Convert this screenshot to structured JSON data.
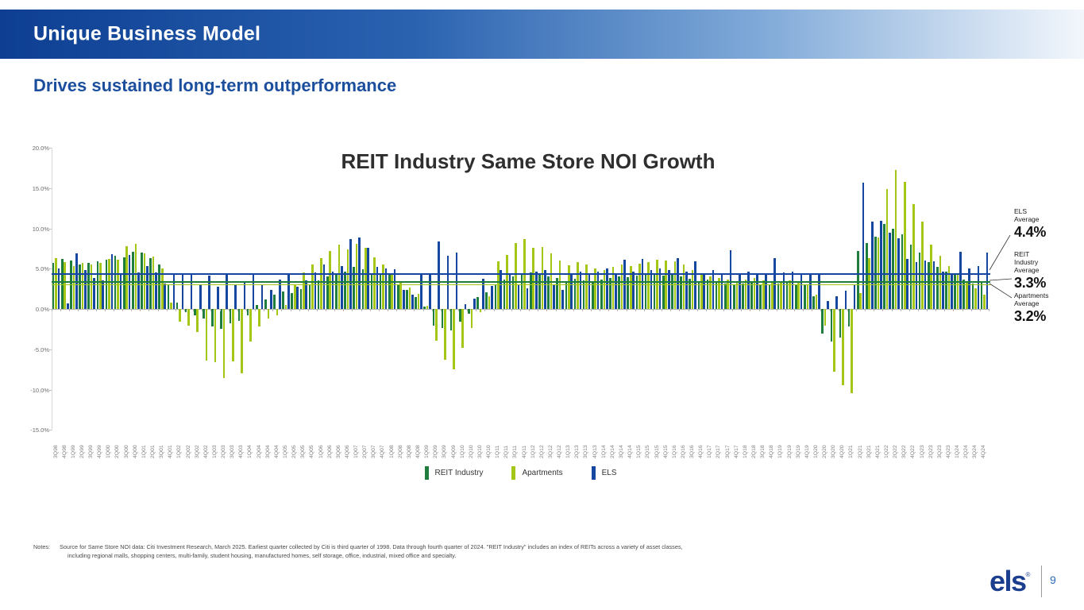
{
  "slide": {
    "header_title": "Unique Business Model",
    "subtitle": "Drives sustained long-term outperformance",
    "page_number": "9",
    "logo_text": "els",
    "logo_reg": "®"
  },
  "averages": {
    "els": {
      "l1": "ELS",
      "l2": "Average",
      "value": "4.4%"
    },
    "reit": {
      "l1": "REIT",
      "l2": "Industry",
      "l3": "Average",
      "value": "3.3%"
    },
    "apartments": {
      "l1": "Apartments",
      "l2": "Average",
      "value": "3.2%"
    }
  },
  "notes": {
    "label": "Notes:",
    "line1": "Source for Same Store NOI data: Citi Investment Research, March 2025. Earliest quarter collected by Citi is third quarter of 1998. Data through fourth quarter of 2024. \"REIT Industry\" includes an index of REITs across a variety of asset classes,",
    "line2": "including regional malls, shopping centers, multi-family, student housing, manufactured homes, self storage, office, industrial, mixed office and specialty."
  },
  "chart_data": {
    "type": "bar",
    "title": "REIT Industry Same Store NOI Growth",
    "ylim": [
      -15,
      20
    ],
    "grid": false,
    "legend_position": "bottom",
    "yticks": [
      [
        20,
        "20.0%"
      ],
      [
        15,
        "15.0%"
      ],
      [
        10,
        "10.0%"
      ],
      [
        5,
        "5.0%"
      ],
      [
        0,
        "0.0%"
      ],
      [
        -5,
        "-5.0%"
      ],
      [
        -10,
        "-10.0%"
      ],
      [
        -15,
        "-15.0%"
      ]
    ],
    "categories": [
      "3Q98",
      "4Q98",
      "1Q99",
      "2Q99",
      "3Q99",
      "4Q99",
      "1Q00",
      "2Q00",
      "3Q00",
      "4Q00",
      "1Q01",
      "2Q01",
      "3Q01",
      "4Q01",
      "1Q02",
      "2Q02",
      "3Q02",
      "4Q02",
      "1Q03",
      "2Q03",
      "3Q03",
      "4Q03",
      "1Q04",
      "2Q04",
      "3Q04",
      "4Q04",
      "1Q05",
      "2Q05",
      "3Q05",
      "4Q05",
      "1Q06",
      "2Q06",
      "3Q06",
      "4Q06",
      "1Q07",
      "2Q07",
      "3Q07",
      "4Q07",
      "1Q08",
      "2Q08",
      "3Q08",
      "4Q08",
      "1Q09",
      "2Q09",
      "3Q09",
      "4Q09",
      "1Q10",
      "2Q10",
      "3Q10",
      "4Q10",
      "1Q11",
      "2Q11",
      "3Q11",
      "4Q11",
      "1Q12",
      "2Q12",
      "3Q12",
      "4Q12",
      "1Q13",
      "2Q13",
      "3Q13",
      "4Q13",
      "1Q14",
      "2Q14",
      "3Q14",
      "4Q14",
      "1Q15",
      "2Q15",
      "3Q15",
      "4Q15",
      "1Q16",
      "2Q16",
      "3Q16",
      "4Q16",
      "1Q17",
      "2Q17",
      "3Q17",
      "4Q17",
      "1Q18",
      "2Q18",
      "3Q18",
      "4Q18",
      "1Q19",
      "2Q19",
      "3Q19",
      "4Q19",
      "1Q20",
      "2Q20",
      "3Q20",
      "4Q20",
      "1Q21",
      "2Q21",
      "3Q21",
      "4Q21",
      "1Q22",
      "2Q22",
      "3Q22",
      "4Q22",
      "1Q23",
      "2Q23",
      "3Q23",
      "4Q23",
      "1Q24",
      "2Q24",
      "3Q24",
      "4Q24"
    ],
    "series": [
      {
        "name": "REIT Industry",
        "color": "#1f7d3e",
        "average": 3.3,
        "values": [
          5.7,
          6.2,
          6.0,
          5.5,
          5.7,
          5.9,
          6.1,
          6.6,
          6.4,
          7.1,
          7.0,
          6.3,
          5.5,
          3.0,
          0.8,
          -0.4,
          -0.8,
          -1.2,
          -2.2,
          -2.5,
          -1.8,
          -1.5,
          -0.8,
          0.5,
          1.2,
          1.8,
          2.2,
          2.0,
          2.5,
          3.0,
          3.5,
          4.0,
          4.2,
          4.6,
          5.2,
          4.9,
          4.4,
          4.4,
          4.2,
          3.1,
          2.4,
          1.5,
          0.3,
          -2.1,
          -2.4,
          -2.7,
          -1.6,
          -0.6,
          1.5,
          2.1,
          3.0,
          3.6,
          4.0,
          4.2,
          4.5,
          4.3,
          4.0,
          3.8,
          3.4,
          3.7,
          3.5,
          3.3,
          3.6,
          3.8,
          4.0,
          3.9,
          4.1,
          4.2,
          4.3,
          4.1,
          4.3,
          4.0,
          3.7,
          3.4,
          3.6,
          3.3,
          3.2,
          3.0,
          3.2,
          3.3,
          3.1,
          3.0,
          3.2,
          3.3,
          3.1,
          3.0,
          1.6,
          -3.1,
          -4.0,
          -3.5,
          -2.2,
          7.2,
          8.2,
          9.0,
          10.5,
          10.0,
          9.3,
          8.0,
          7.0,
          5.8,
          5.2,
          4.6,
          4.2,
          3.6,
          3.2,
          3.4
        ]
      },
      {
        "name": "Apartments",
        "color": "#a4c717",
        "average": 3.2,
        "values": [
          6.3,
          5.8,
          5.3,
          5.7,
          5.5,
          5.7,
          6.2,
          6.1,
          7.8,
          8.1,
          6.9,
          6.5,
          5.0,
          0.8,
          -1.6,
          -2.1,
          -2.9,
          -6.4,
          -6.6,
          -8.6,
          -6.5,
          -8.0,
          -4.0,
          -2.2,
          -1.2,
          -0.8,
          0.5,
          3.0,
          4.5,
          5.5,
          6.3,
          7.2,
          8.0,
          7.4,
          8.1,
          7.6,
          6.4,
          5.5,
          4.4,
          3.4,
          2.7,
          1.9,
          0.4,
          -3.9,
          -6.3,
          -7.5,
          -4.8,
          -2.4,
          -0.4,
          1.6,
          5.9,
          6.7,
          8.2,
          8.7,
          7.6,
          7.7,
          6.9,
          6.0,
          5.4,
          5.8,
          5.5,
          5.0,
          4.8,
          5.2,
          5.5,
          5.3,
          5.6,
          5.8,
          6.1,
          6.0,
          5.9,
          5.5,
          4.8,
          4.2,
          4.0,
          3.8,
          3.6,
          3.4,
          3.6,
          3.8,
          3.5,
          3.3,
          3.4,
          3.5,
          3.3,
          3.1,
          1.8,
          -2.1,
          -7.8,
          -9.5,
          -10.4,
          2.0,
          6.3,
          8.9,
          14.9,
          17.2,
          15.8,
          13.0,
          10.8,
          8.0,
          6.6,
          5.3,
          4.4,
          3.3,
          2.6,
          1.8
        ]
      },
      {
        "name": "ELS",
        "color": "#1547a0",
        "average": 4.4,
        "values": [
          5.0,
          0.7,
          6.9,
          4.8,
          3.8,
          3.5,
          6.8,
          4.2,
          6.7,
          4.5,
          5.3,
          4.5,
          3.2,
          4.3,
          4.4,
          4.3,
          3.0,
          4.1,
          2.8,
          4.2,
          3.0,
          3.4,
          4.2,
          3.0,
          2.4,
          3.6,
          4.4,
          2.8,
          3.5,
          4.5,
          5.5,
          4.6,
          5.3,
          8.7,
          8.9,
          7.6,
          5.2,
          5.0,
          4.9,
          2.4,
          1.8,
          4.3,
          4.4,
          8.4,
          6.6,
          7.0,
          0.6,
          1.3,
          3.7,
          2.9,
          4.8,
          4.4,
          3.0,
          2.6,
          4.6,
          4.8,
          3.0,
          2.4,
          4.4,
          4.6,
          4.2,
          4.6,
          5.0,
          4.4,
          6.1,
          4.6,
          6.2,
          4.8,
          5.0,
          4.8,
          6.3,
          4.6,
          5.9,
          4.4,
          4.8,
          4.4,
          7.3,
          4.3,
          4.6,
          4.4,
          4.4,
          6.3,
          4.5,
          4.6,
          4.4,
          4.4,
          4.4,
          1.0,
          1.6,
          2.3,
          3.0,
          15.7,
          10.8,
          10.9,
          9.5,
          8.8,
          6.2,
          5.8,
          6.0,
          5.9,
          4.6,
          4.3,
          7.1,
          5.0,
          5.3,
          7.0
        ]
      }
    ]
  }
}
